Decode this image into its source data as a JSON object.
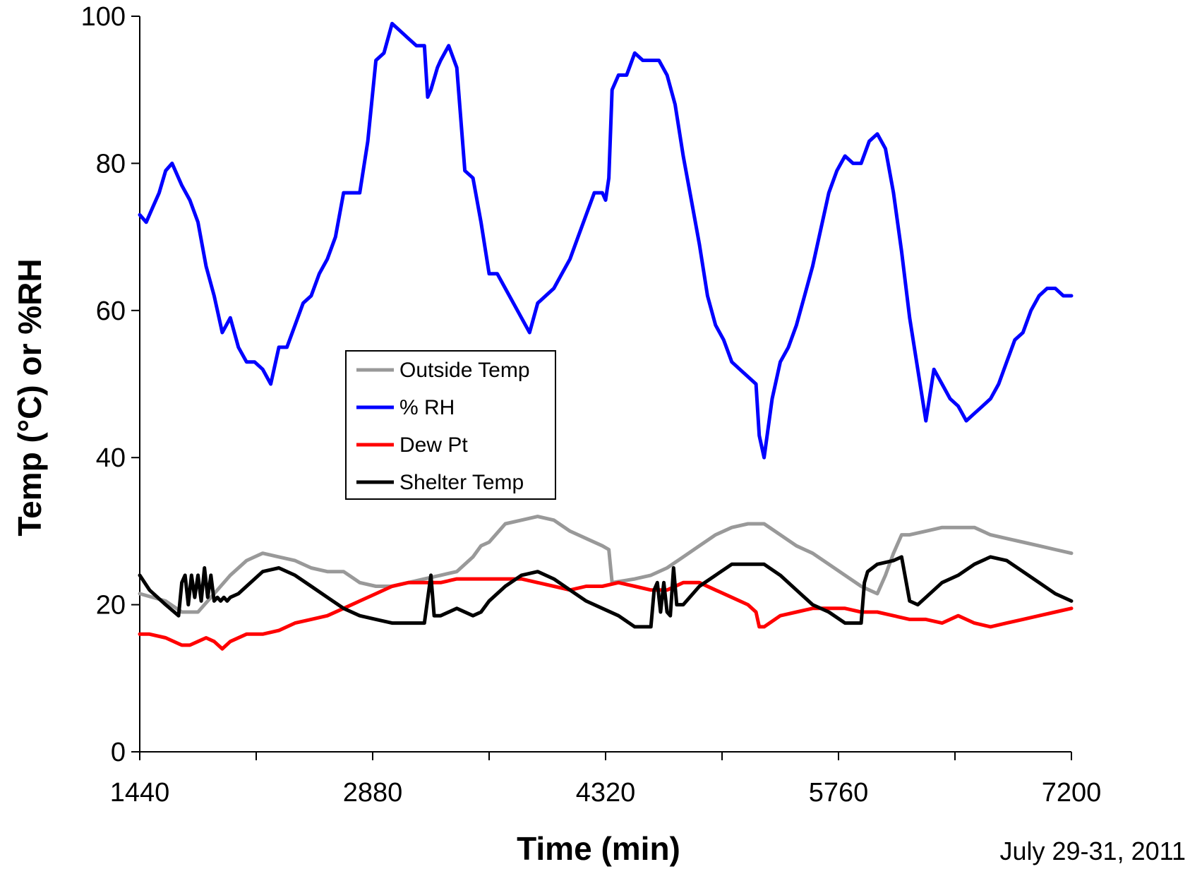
{
  "chart_data": {
    "type": "line",
    "xlabel": "Time (min)",
    "ylabel": "Temp (°C) or %RH",
    "xlim": [
      1440,
      7200
    ],
    "ylim": [
      0,
      100
    ],
    "x_ticks": [
      1440,
      2880,
      4320,
      5760,
      7200
    ],
    "y_ticks": [
      0,
      20,
      40,
      60,
      80,
      100
    ],
    "grid": false,
    "legend_position": "center-left",
    "annotation": "July 29-31, 2011",
    "series": [
      {
        "name": "Outside Temp",
        "color": "#999999",
        "x": [
          1440,
          1600,
          1700,
          1800,
          1900,
          2000,
          2100,
          2150,
          2200,
          2300,
          2400,
          2500,
          2600,
          2700,
          2800,
          2900,
          3000,
          3100,
          3200,
          3300,
          3400,
          3500,
          3550,
          3600,
          3700,
          3800,
          3900,
          4000,
          4100,
          4200,
          4300,
          4340,
          4360,
          4500,
          4600,
          4700,
          4800,
          4900,
          5000,
          5100,
          5200,
          5300,
          5400,
          5500,
          5600,
          5700,
          5800,
          5900,
          5950,
          6000,
          6050,
          6100,
          6150,
          6200,
          6300,
          6400,
          6500,
          6600,
          6700,
          6800,
          6900,
          7000,
          7100,
          7200
        ],
        "values": [
          21.5,
          20.5,
          19,
          19,
          21.5,
          24,
          26,
          26.5,
          27,
          26.5,
          26,
          25,
          24.5,
          24.5,
          23,
          22.5,
          22.5,
          23,
          23.5,
          24,
          24.5,
          26.5,
          28,
          28.5,
          31,
          31.5,
          32,
          31.5,
          30,
          29,
          28,
          27.5,
          23,
          23.5,
          24,
          25,
          26.5,
          28,
          29.5,
          30.5,
          31,
          31,
          29.5,
          28,
          27,
          25.5,
          24,
          22.5,
          22,
          21.5,
          24,
          27,
          29.5,
          29.5,
          30,
          30.5,
          30.5,
          30.5,
          29.5,
          29,
          28.5,
          28,
          27.5,
          27
        ]
      },
      {
        "name": "% RH",
        "color": "#0000ff",
        "x": [
          1440,
          1480,
          1520,
          1560,
          1600,
          1640,
          1700,
          1750,
          1800,
          1850,
          1900,
          1950,
          2000,
          2050,
          2100,
          2150,
          2200,
          2250,
          2300,
          2350,
          2400,
          2450,
          2500,
          2550,
          2600,
          2650,
          2700,
          2750,
          2800,
          2850,
          2900,
          2950,
          3000,
          3050,
          3100,
          3150,
          3200,
          3220,
          3240,
          3280,
          3300,
          3350,
          3400,
          3450,
          3500,
          3550,
          3600,
          3650,
          3700,
          3750,
          3800,
          3850,
          3900,
          3950,
          4000,
          4050,
          4100,
          4150,
          4200,
          4250,
          4300,
          4320,
          4340,
          4360,
          4400,
          4450,
          4500,
          4550,
          4600,
          4650,
          4700,
          4750,
          4800,
          4850,
          4900,
          4950,
          5000,
          5050,
          5100,
          5150,
          5200,
          5250,
          5270,
          5300,
          5350,
          5400,
          5450,
          5500,
          5550,
          5600,
          5650,
          5700,
          5750,
          5800,
          5850,
          5900,
          5950,
          6000,
          6050,
          6100,
          6150,
          6200,
          6250,
          6300,
          6350,
          6400,
          6450,
          6500,
          6550,
          6600,
          6650,
          6700,
          6750,
          6800,
          6850,
          6900,
          6950,
          7000,
          7050,
          7100,
          7150,
          7200
        ],
        "values": [
          73,
          72,
          74,
          76,
          79,
          80,
          77,
          75,
          72,
          66,
          62,
          57,
          59,
          55,
          53,
          53,
          52,
          50,
          55,
          55,
          58,
          61,
          62,
          65,
          67,
          70,
          76,
          76,
          76,
          83,
          94,
          95,
          99,
          98,
          97,
          96,
          96,
          89,
          90,
          93,
          94,
          96,
          93,
          79,
          78,
          72,
          65,
          65,
          63,
          61,
          59,
          57,
          61,
          62,
          63,
          65,
          67,
          70,
          73,
          76,
          76,
          75,
          78,
          90,
          92,
          92,
          95,
          94,
          94,
          94,
          92,
          88,
          81,
          75,
          69,
          62,
          58,
          56,
          53,
          52,
          51,
          50,
          43,
          40,
          48,
          53,
          55,
          58,
          62,
          66,
          71,
          76,
          79,
          81,
          80,
          80,
          83,
          84,
          82,
          76,
          68,
          59,
          52,
          45,
          52,
          50,
          48,
          47,
          45,
          46,
          47,
          48,
          50,
          53,
          56,
          57,
          60,
          62,
          63,
          63,
          62,
          62
        ]
      },
      {
        "name": "Dew Pt",
        "color": "#ff0000",
        "x": [
          1440,
          1500,
          1600,
          1700,
          1750,
          1800,
          1850,
          1900,
          1950,
          2000,
          2100,
          2200,
          2300,
          2400,
          2500,
          2600,
          2700,
          2800,
          2900,
          3000,
          3100,
          3200,
          3300,
          3400,
          3500,
          3600,
          3700,
          3800,
          3900,
          4000,
          4100,
          4200,
          4300,
          4400,
          4500,
          4600,
          4700,
          4800,
          4900,
          5000,
          5100,
          5200,
          5250,
          5270,
          5300,
          5400,
          5500,
          5600,
          5700,
          5800,
          5900,
          6000,
          6100,
          6200,
          6300,
          6400,
          6500,
          6600,
          6700,
          6800,
          6900,
          7000,
          7100,
          7200
        ],
        "values": [
          16,
          16,
          15.5,
          14.5,
          14.5,
          15,
          15.5,
          15,
          14,
          15,
          16,
          16,
          16.5,
          17.5,
          18,
          18.5,
          19.5,
          20.5,
          21.5,
          22.5,
          23,
          23,
          23,
          23.5,
          23.5,
          23.5,
          23.5,
          23.5,
          23,
          22.5,
          22,
          22.5,
          22.5,
          23,
          22.5,
          22,
          22,
          23,
          23,
          22,
          21,
          20,
          19,
          17,
          17,
          18.5,
          19,
          19.5,
          19.5,
          19.5,
          19,
          19,
          18.5,
          18,
          18,
          17.5,
          18.5,
          17.5,
          17,
          17.5,
          18,
          18.5,
          19,
          19.5
        ]
      },
      {
        "name": "Shelter Temp",
        "color": "#000000",
        "x": [
          1440,
          1500,
          1600,
          1680,
          1700,
          1720,
          1740,
          1760,
          1780,
          1800,
          1820,
          1840,
          1860,
          1880,
          1900,
          1920,
          1940,
          1960,
          1980,
          2000,
          2050,
          2100,
          2200,
          2300,
          2400,
          2500,
          2600,
          2700,
          2800,
          2900,
          3000,
          3100,
          3200,
          3240,
          3260,
          3280,
          3300,
          3400,
          3500,
          3550,
          3600,
          3700,
          3800,
          3900,
          4000,
          4100,
          4200,
          4300,
          4400,
          4500,
          4600,
          4620,
          4640,
          4660,
          4680,
          4700,
          4720,
          4740,
          4760,
          4800,
          4900,
          5000,
          5100,
          5200,
          5300,
          5400,
          5500,
          5600,
          5700,
          5800,
          5900,
          5920,
          5940,
          6000,
          6100,
          6150,
          6200,
          6250,
          6300,
          6400,
          6500,
          6600,
          6700,
          6800,
          6900,
          7000,
          7100,
          7200
        ],
        "values": [
          24,
          22,
          20,
          18.5,
          23,
          24,
          20,
          24,
          21,
          24,
          20.5,
          25,
          21,
          24,
          20.5,
          21,
          20.5,
          21,
          20.5,
          21,
          21.5,
          22.5,
          24.5,
          25,
          24,
          22.5,
          21,
          19.5,
          18.5,
          18,
          17.5,
          17.5,
          17.5,
          24,
          18.5,
          18.5,
          18.5,
          19.5,
          18.5,
          19,
          20.5,
          22.5,
          24,
          24.5,
          23.5,
          22,
          20.5,
          19.5,
          18.5,
          17,
          17,
          22,
          23,
          19,
          23,
          19,
          18.5,
          25,
          20,
          20,
          22.5,
          24,
          25.5,
          25.5,
          25.5,
          24,
          22,
          20,
          19,
          17.5,
          17.5,
          23,
          24.5,
          25.5,
          26,
          26.5,
          20.5,
          20,
          21,
          23,
          24,
          25.5,
          26.5,
          26,
          24.5,
          23,
          21.5,
          20.5
        ]
      }
    ]
  }
}
